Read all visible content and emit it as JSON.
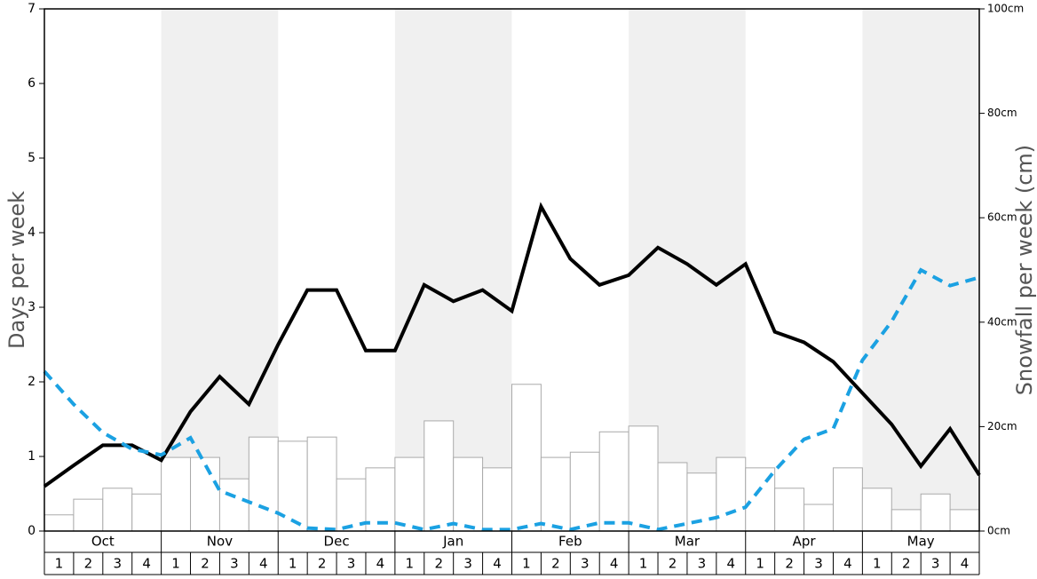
{
  "chart_data": {
    "type": "bar",
    "months": [
      "Oct",
      "Nov",
      "Dec",
      "Jan",
      "Feb",
      "Mar",
      "Apr",
      "May"
    ],
    "weeks": [
      "1",
      "2",
      "3",
      "4"
    ],
    "ylabel": "Days per week",
    "y2label": "Snowfall per week (cm)",
    "ylim": [
      0,
      7
    ],
    "yticks": [
      0,
      1,
      2,
      3,
      4,
      5,
      6,
      7
    ],
    "y2lim": [
      0,
      100
    ],
    "y2ticks": [
      {
        "value": 0,
        "label": "0cm"
      },
      {
        "value": 20,
        "label": "20cm"
      },
      {
        "value": 40,
        "label": "40cm"
      },
      {
        "value": 60,
        "label": "60cm"
      },
      {
        "value": 80,
        "label": "80cm"
      },
      {
        "value": 100,
        "label": "100cm"
      }
    ],
    "shade_color": "#f0f0f0",
    "series": [
      {
        "type": "bar",
        "axis": "y2",
        "color": "#ffffff",
        "values": [
          3.1,
          6.1,
          8.2,
          7.1,
          14.1,
          14.1,
          10.0,
          18.0,
          17.2,
          18.0,
          10.0,
          12.1,
          14.1,
          21.1,
          14.1,
          12.1,
          28.1,
          14.1,
          15.1,
          19.0,
          20.1,
          13.1,
          11.1,
          14.1,
          12.1,
          8.2,
          5.1,
          12.1,
          8.2,
          4.1,
          7.1,
          4.1
        ]
      },
      {
        "type": "line",
        "color": "#000000",
        "values": [
          0.6,
          0.88,
          1.15,
          1.15,
          0.95,
          1.6,
          2.07,
          1.7,
          2.5,
          3.23,
          3.23,
          2.42,
          2.42,
          3.3,
          3.08,
          3.23,
          2.95,
          4.35,
          3.65,
          3.3,
          3.43,
          3.8,
          3.58,
          3.3,
          3.58,
          2.67,
          2.53,
          2.27,
          1.85,
          1.43,
          0.87,
          1.37,
          0.75
        ]
      },
      {
        "type": "line",
        "color": "#1ba1e2",
        "dashed": true,
        "values": [
          2.14,
          1.7,
          1.32,
          1.1,
          1.02,
          1.25,
          0.54,
          0.39,
          0.24,
          0.04,
          0.02,
          0.11,
          0.11,
          0.02,
          0.1,
          0.02,
          0.02,
          0.1,
          0.02,
          0.11,
          0.11,
          0.02,
          0.1,
          0.18,
          0.32,
          0.81,
          1.23,
          1.37,
          2.29,
          2.81,
          3.5,
          3.29,
          3.4
        ]
      }
    ]
  }
}
